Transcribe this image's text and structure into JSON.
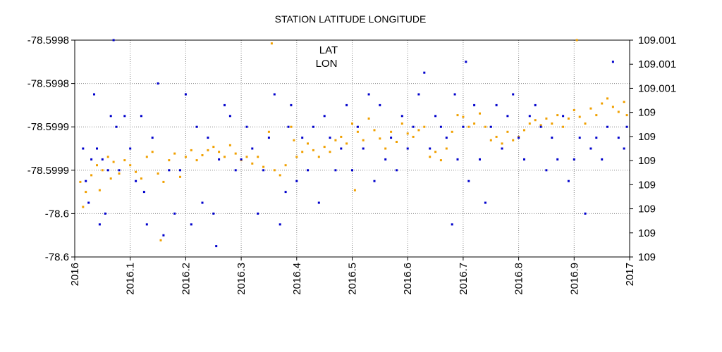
{
  "chart_data": {
    "type": "scatter",
    "title": "STATION LATITUDE LONGITUDE",
    "xlabel": "",
    "ylabel": "",
    "xlim": [
      2016,
      2017
    ],
    "ylim_left": [
      -78.6,
      -78.5998
    ],
    "ylim_right": [
      109.0,
      109.0013
    ],
    "x_tick_labels": [
      "2016",
      "2016.1",
      "2016.2",
      "2016.3",
      "2016.4",
      "2016.5",
      "2016.6",
      "2016.7",
      "2016.8",
      "2016.9",
      "2017"
    ],
    "left_tick_labels": [
      "-78.5998",
      "-78.5998",
      "-78.5999",
      "-78.5999",
      "-78.6",
      "-78.6"
    ],
    "right_tick_labels": [
      "109.001",
      "109.001",
      "109.001",
      "109",
      "109",
      "109",
      "109",
      "109",
      "109",
      "109"
    ],
    "grid": true,
    "legend": {
      "position": "top-center",
      "entries": [
        "LAT",
        "LON"
      ]
    },
    "series": [
      {
        "name": "LAT",
        "axis": "left",
        "color": "#0000cc",
        "points": [
          [
            2016.015,
            -78.5999
          ],
          [
            2016.02,
            -78.59993
          ],
          [
            2016.025,
            -78.59995
          ],
          [
            2016.03,
            -78.59991
          ],
          [
            2016.035,
            -78.59985
          ],
          [
            2016.04,
            -78.5999
          ],
          [
            2016.045,
            -78.59997
          ],
          [
            2016.05,
            -78.59991
          ],
          [
            2016.055,
            -78.59996
          ],
          [
            2016.06,
            -78.59992
          ],
          [
            2016.065,
            -78.59987
          ],
          [
            2016.07,
            -78.5998
          ],
          [
            2016.075,
            -78.59988
          ],
          [
            2016.08,
            -78.59992
          ],
          [
            2016.09,
            -78.59987
          ],
          [
            2016.1,
            -78.5999
          ],
          [
            2016.11,
            -78.59993
          ],
          [
            2016.12,
            -78.59987
          ],
          [
            2016.125,
            -78.59994
          ],
          [
            2016.13,
            -78.59997
          ],
          [
            2016.14,
            -78.59989
          ],
          [
            2016.15,
            -78.59984
          ],
          [
            2016.16,
            -78.59998
          ],
          [
            2016.17,
            -78.59992
          ],
          [
            2016.18,
            -78.59996
          ],
          [
            2016.19,
            -78.59992
          ],
          [
            2016.2,
            -78.59985
          ],
          [
            2016.21,
            -78.59997
          ],
          [
            2016.22,
            -78.59988
          ],
          [
            2016.23,
            -78.59995
          ],
          [
            2016.24,
            -78.59989
          ],
          [
            2016.25,
            -78.59996
          ],
          [
            2016.255,
            -78.59999
          ],
          [
            2016.26,
            -78.59991
          ],
          [
            2016.27,
            -78.59986
          ],
          [
            2016.28,
            -78.59987
          ],
          [
            2016.29,
            -78.59992
          ],
          [
            2016.3,
            -78.59991
          ],
          [
            2016.31,
            -78.59988
          ],
          [
            2016.32,
            -78.5999
          ],
          [
            2016.33,
            -78.59996
          ],
          [
            2016.34,
            -78.59992
          ],
          [
            2016.35,
            -78.59989
          ],
          [
            2016.36,
            -78.59985
          ],
          [
            2016.37,
            -78.59997
          ],
          [
            2016.38,
            -78.59994
          ],
          [
            2016.385,
            -78.59988
          ],
          [
            2016.39,
            -78.59986
          ],
          [
            2016.4,
            -78.59993
          ],
          [
            2016.41,
            -78.59989
          ],
          [
            2016.42,
            -78.59992
          ],
          [
            2016.43,
            -78.59988
          ],
          [
            2016.44,
            -78.59995
          ],
          [
            2016.45,
            -78.59987
          ],
          [
            2016.46,
            -78.59989
          ],
          [
            2016.47,
            -78.59992
          ],
          [
            2016.48,
            -78.5999
          ],
          [
            2016.49,
            -78.59986
          ],
          [
            2016.5,
            -78.59992
          ],
          [
            2016.51,
            -78.59988
          ],
          [
            2016.52,
            -78.5999
          ],
          [
            2016.53,
            -78.59985
          ],
          [
            2016.54,
            -78.59993
          ],
          [
            2016.55,
            -78.59986
          ],
          [
            2016.56,
            -78.59991
          ],
          [
            2016.57,
            -78.59989
          ],
          [
            2016.58,
            -78.59992
          ],
          [
            2016.59,
            -78.59987
          ],
          [
            2016.6,
            -78.5999
          ],
          [
            2016.61,
            -78.59988
          ],
          [
            2016.62,
            -78.59985
          ],
          [
            2016.63,
            -78.59983
          ],
          [
            2016.64,
            -78.5999
          ],
          [
            2016.65,
            -78.59987
          ],
          [
            2016.66,
            -78.59988
          ],
          [
            2016.67,
            -78.59989
          ],
          [
            2016.68,
            -78.59997
          ],
          [
            2016.685,
            -78.59985
          ],
          [
            2016.69,
            -78.59991
          ],
          [
            2016.7,
            -78.59988
          ],
          [
            2016.705,
            -78.59982
          ],
          [
            2016.71,
            -78.59993
          ],
          [
            2016.72,
            -78.59986
          ],
          [
            2016.73,
            -78.59991
          ],
          [
            2016.74,
            -78.59995
          ],
          [
            2016.75,
            -78.59988
          ],
          [
            2016.76,
            -78.59986
          ],
          [
            2016.77,
            -78.5999
          ],
          [
            2016.78,
            -78.59987
          ],
          [
            2016.79,
            -78.59985
          ],
          [
            2016.8,
            -78.59989
          ],
          [
            2016.81,
            -78.59991
          ],
          [
            2016.82,
            -78.59987
          ],
          [
            2016.83,
            -78.59986
          ],
          [
            2016.84,
            -78.59988
          ],
          [
            2016.85,
            -78.59992
          ],
          [
            2016.86,
            -78.59989
          ],
          [
            2016.87,
            -78.59991
          ],
          [
            2016.88,
            -78.59987
          ],
          [
            2016.89,
            -78.59993
          ],
          [
            2016.9,
            -78.59991
          ],
          [
            2016.91,
            -78.59989
          ],
          [
            2016.92,
            -78.59996
          ],
          [
            2016.93,
            -78.5999
          ],
          [
            2016.94,
            -78.59989
          ],
          [
            2016.95,
            -78.59991
          ],
          [
            2016.96,
            -78.59988
          ],
          [
            2016.97,
            -78.59982
          ],
          [
            2016.98,
            -78.59989
          ],
          [
            2016.99,
            -78.5999
          ],
          [
            2016.995,
            -78.59988
          ]
        ]
      },
      {
        "name": "LON",
        "axis": "right",
        "color": "#f0a000",
        "points": [
          [
            2016.01,
            109.00045
          ],
          [
            2016.015,
            109.0003
          ],
          [
            2016.02,
            109.00039
          ],
          [
            2016.03,
            109.00049
          ],
          [
            2016.04,
            109.00055
          ],
          [
            2016.045,
            109.0004
          ],
          [
            2016.05,
            109.00052
          ],
          [
            2016.06,
            109.0006
          ],
          [
            2016.065,
            109.00047
          ],
          [
            2016.07,
            109.00057
          ],
          [
            2016.08,
            109.0005
          ],
          [
            2016.09,
            109.00058
          ],
          [
            2016.1,
            109.00055
          ],
          [
            2016.11,
            109.00051
          ],
          [
            2016.12,
            109.00047
          ],
          [
            2016.13,
            109.0006
          ],
          [
            2016.14,
            109.00063
          ],
          [
            2016.15,
            109.0005
          ],
          [
            2016.155,
            109.0001
          ],
          [
            2016.16,
            109.00045
          ],
          [
            2016.17,
            109.00058
          ],
          [
            2016.18,
            109.00062
          ],
          [
            2016.19,
            109.00048
          ],
          [
            2016.2,
            109.0006
          ],
          [
            2016.21,
            109.00064
          ],
          [
            2016.22,
            109.00058
          ],
          [
            2016.23,
            109.00061
          ],
          [
            2016.24,
            109.00064
          ],
          [
            2016.25,
            109.00066
          ],
          [
            2016.26,
            109.00063
          ],
          [
            2016.27,
            109.0006
          ],
          [
            2016.28,
            109.00067
          ],
          [
            2016.29,
            109.00062
          ],
          [
            2016.3,
            109.00058
          ],
          [
            2016.31,
            109.0006
          ],
          [
            2016.32,
            109.00056
          ],
          [
            2016.33,
            109.0006
          ],
          [
            2016.34,
            109.00054
          ],
          [
            2016.35,
            109.00075
          ],
          [
            2016.355,
            109.00128
          ],
          [
            2016.36,
            109.00052
          ],
          [
            2016.37,
            109.00049
          ],
          [
            2016.38,
            109.00055
          ],
          [
            2016.39,
            109.00078
          ],
          [
            2016.395,
            109.0007
          ],
          [
            2016.4,
            109.0006
          ],
          [
            2016.41,
            109.00063
          ],
          [
            2016.42,
            109.00068
          ],
          [
            2016.43,
            109.00064
          ],
          [
            2016.44,
            109.0006
          ],
          [
            2016.45,
            109.00066
          ],
          [
            2016.46,
            109.00063
          ],
          [
            2016.47,
            109.0007
          ],
          [
            2016.48,
            109.00072
          ],
          [
            2016.49,
            109.00068
          ],
          [
            2016.5,
            109.0008
          ],
          [
            2016.505,
            109.0004
          ],
          [
            2016.51,
            109.00075
          ],
          [
            2016.52,
            109.0007
          ],
          [
            2016.53,
            109.00083
          ],
          [
            2016.54,
            109.00076
          ],
          [
            2016.55,
            109.00071
          ],
          [
            2016.56,
            109.00065
          ],
          [
            2016.57,
            109.00075
          ],
          [
            2016.58,
            109.00069
          ],
          [
            2016.59,
            109.0008
          ],
          [
            2016.6,
            109.00074
          ],
          [
            2016.61,
            109.00072
          ],
          [
            2016.62,
            109.00076
          ],
          [
            2016.63,
            109.00078
          ],
          [
            2016.64,
            109.0006
          ],
          [
            2016.65,
            109.00063
          ],
          [
            2016.66,
            109.00058
          ],
          [
            2016.67,
            109.00065
          ],
          [
            2016.68,
            109.00075
          ],
          [
            2016.69,
            109.00085
          ],
          [
            2016.7,
            109.00084
          ],
          [
            2016.71,
            109.00078
          ],
          [
            2016.72,
            109.0008
          ],
          [
            2016.73,
            109.00086
          ],
          [
            2016.74,
            109.00078
          ],
          [
            2016.75,
            109.0007
          ],
          [
            2016.76,
            109.00072
          ],
          [
            2016.77,
            109.00068
          ],
          [
            2016.78,
            109.00075
          ],
          [
            2016.79,
            109.0007
          ],
          [
            2016.8,
            109.00072
          ],
          [
            2016.81,
            109.00076
          ],
          [
            2016.82,
            109.0008
          ],
          [
            2016.83,
            109.00082
          ],
          [
            2016.84,
            109.00079
          ],
          [
            2016.85,
            109.00083
          ],
          [
            2016.86,
            109.0008
          ],
          [
            2016.87,
            109.00085
          ],
          [
            2016.88,
            109.00078
          ],
          [
            2016.89,
            109.00083
          ],
          [
            2016.9,
            109.00088
          ],
          [
            2016.905,
            109.0013
          ],
          [
            2016.91,
            109.00084
          ],
          [
            2016.92,
            109.0008
          ],
          [
            2016.93,
            109.00089
          ],
          [
            2016.94,
            109.00085
          ],
          [
            2016.95,
            109.00092
          ],
          [
            2016.96,
            109.00095
          ],
          [
            2016.97,
            109.0009
          ],
          [
            2016.98,
            109.00087
          ],
          [
            2016.99,
            109.00093
          ],
          [
            2016.995,
            109.00085
          ]
        ]
      }
    ]
  }
}
